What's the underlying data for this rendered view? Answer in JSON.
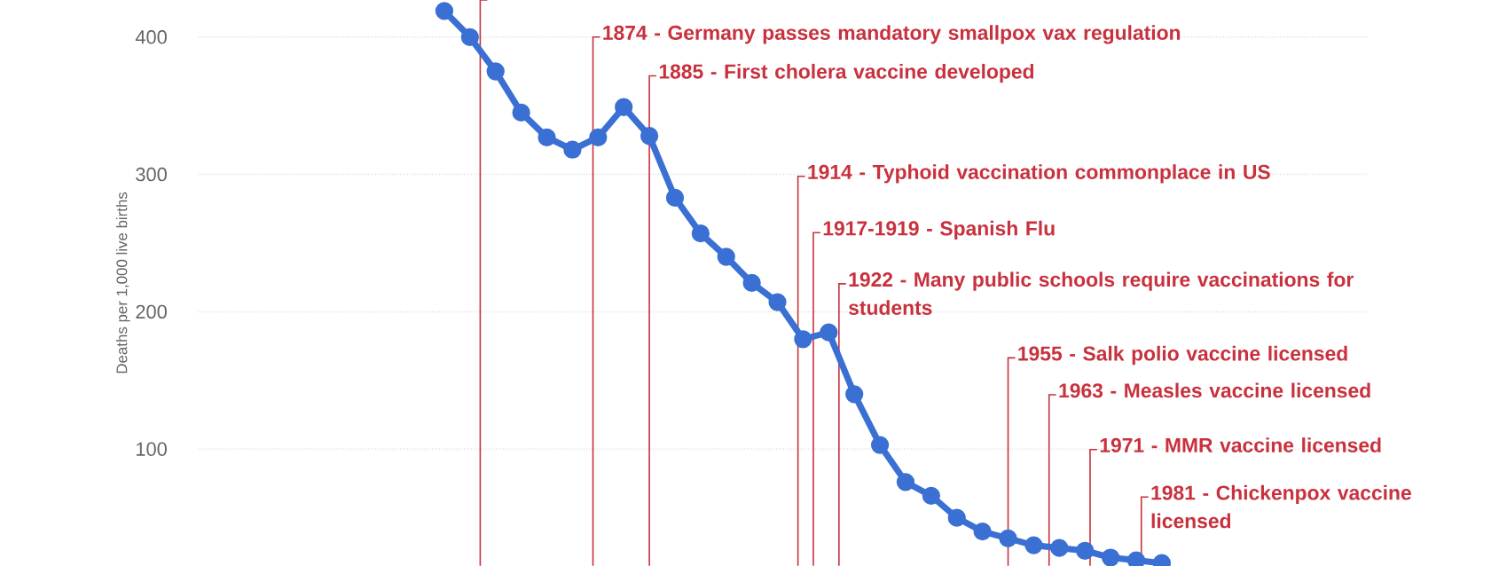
{
  "chart_data": {
    "type": "line",
    "ylabel": "Deaths per 1,000 live births",
    "x": [
      1845,
      1850,
      1855,
      1860,
      1865,
      1870,
      1875,
      1880,
      1885,
      1890,
      1895,
      1900,
      1905,
      1910,
      1915,
      1920,
      1925,
      1930,
      1935,
      1940,
      1945,
      1950,
      1955,
      1960,
      1965,
      1970,
      1975,
      1980,
      1985
    ],
    "values": [
      419,
      400,
      375,
      345,
      327,
      318,
      327,
      349,
      328,
      283,
      257,
      240,
      221,
      207,
      180,
      185,
      140,
      103,
      76,
      66,
      50,
      40,
      35,
      30,
      28,
      26,
      21,
      19,
      17
    ],
    "color": "#3a6fd3",
    "xlim": [
      1797,
      2025
    ],
    "ylim": [
      15,
      427
    ],
    "yticks": [
      100,
      200,
      300,
      400
    ],
    "grid": "y",
    "tick_labels": "y",
    "marker": "circle",
    "line_style": "solid",
    "ref_lines": [
      {
        "axis": "x",
        "value": 1852,
        "color": "#c8313d"
      },
      {
        "axis": "x",
        "value": 1874,
        "label": "1874 - Germany passes mandatory smallpox vax regulation",
        "color": "#c8313d"
      },
      {
        "axis": "x",
        "value": 1885,
        "label": "1885 - First cholera vaccine developed",
        "color": "#c8313d"
      },
      {
        "axis": "x",
        "value": 1914,
        "label": "1914 - Typhoid vaccination commonplace in US",
        "color": "#c8313d"
      },
      {
        "axis": "x",
        "value": 1917,
        "label": "1917-1919 - Spanish Flu",
        "color": "#c8313d"
      },
      {
        "axis": "x",
        "value": 1922,
        "label": "1922 - Many public schools require vaccinations for students",
        "color": "#c8313d"
      },
      {
        "axis": "x",
        "value": 1955,
        "label": "1955 - Salk polio vaccine licensed",
        "color": "#c8313d"
      },
      {
        "axis": "x",
        "value": 1963,
        "label": "1963 - Measles vaccine licensed",
        "color": "#c8313d"
      },
      {
        "axis": "x",
        "value": 1971,
        "label": "1971 - MMR vaccine licensed",
        "color": "#c8313d"
      },
      {
        "axis": "x",
        "value": 1981,
        "label": "1981 - Chickenpox vaccine licensed",
        "color": "#c8313d"
      }
    ]
  }
}
